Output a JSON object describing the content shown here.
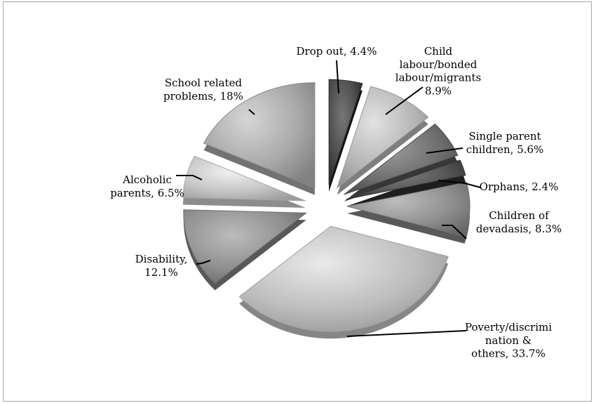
{
  "chart_data": {
    "type": "pie",
    "title": "",
    "slices": [
      {
        "label": "Drop out, 4.4%",
        "value": 4.4,
        "color": "#4a4a4a"
      },
      {
        "label": "Child labour/bonded labour/migrants 8.9%",
        "value": 8.9,
        "color": "#b5b5b5"
      },
      {
        "label": "Single parent children, 5.6%",
        "value": 5.6,
        "color": "#6e6e6e"
      },
      {
        "label": "Orphans, 2.4%",
        "value": 2.4,
        "color": "#555555"
      },
      {
        "label": "Children of devadasis, 8.3%",
        "value": 8.3,
        "color": "#909090"
      },
      {
        "label": "Poverty/discrimi nation & others, 33.7%",
        "value": 33.7,
        "color": "#bdbdbd"
      },
      {
        "label": "Disability, 12.1%",
        "value": 12.1,
        "color": "#8f8f8f"
      },
      {
        "label": "Alcoholic parents, 6.5%",
        "value": 6.5,
        "color": "#c4c4c4"
      },
      {
        "label": "School related problems, 18%",
        "value": 18,
        "color": "#a9a9a9"
      }
    ],
    "label_lines": [
      [
        "Drop out, 4.4%"
      ],
      [
        "Child",
        "labour/bonded",
        "labour/migrants",
        "8.9%"
      ],
      [
        "Single parent",
        "children, 5.6%"
      ],
      [
        "Orphans, 2.4%"
      ],
      [
        "Children of",
        "devadasis, 8.3%"
      ],
      [
        "Poverty/discrimi",
        "nation &",
        "others, 33.7%"
      ],
      [
        "Disability,",
        "12.1%"
      ],
      [
        "Alcoholic",
        "parents, 6.5%"
      ],
      [
        "School related",
        "problems, 18%"
      ]
    ]
  }
}
